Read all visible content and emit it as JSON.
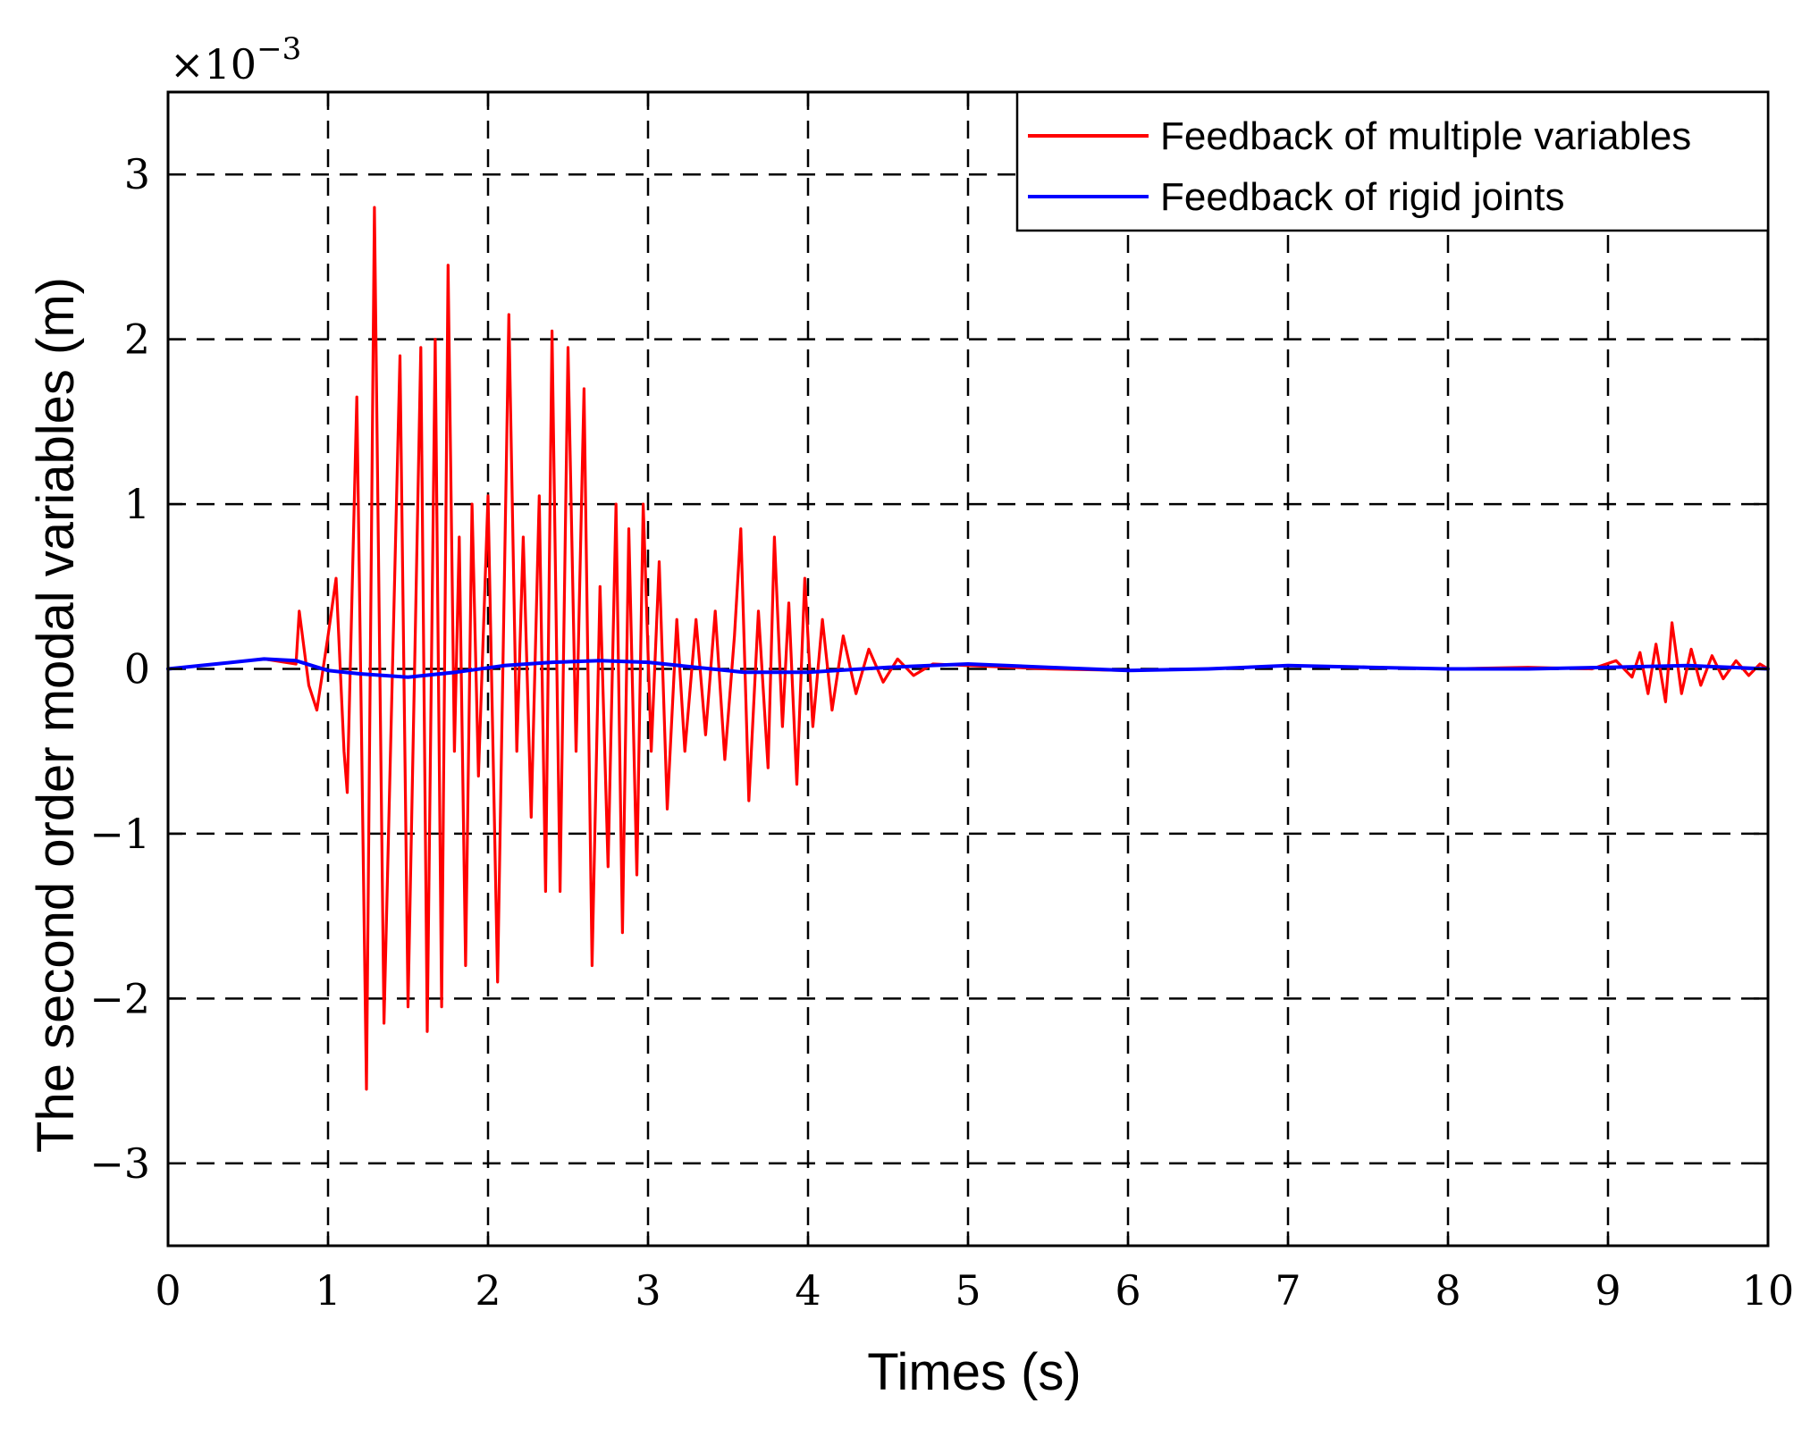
{
  "chart_data": {
    "type": "line",
    "title": "",
    "xlabel": "Times (s)",
    "ylabel": "The second order modal variables (m)",
    "y_multiplier": "×10",
    "y_multiplier_exp": "−3",
    "xlim": [
      0,
      10
    ],
    "ylim": [
      -3.5,
      3.5
    ],
    "grid": true,
    "legend_position": "top-right",
    "xticks": [
      0,
      1,
      2,
      3,
      4,
      5,
      6,
      7,
      8,
      9,
      10
    ],
    "xtick_labels": [
      "0",
      "1",
      "2",
      "3",
      "4",
      "5",
      "6",
      "7",
      "8",
      "9",
      "10"
    ],
    "yticks": [
      -3,
      -2,
      -1,
      0,
      1,
      2,
      3
    ],
    "ytick_labels": [
      "−3",
      "−2",
      "−1",
      "0",
      "1",
      "2",
      "3"
    ],
    "series": [
      {
        "name": "Feedback of multiple variables",
        "color": "#ff0000",
        "points": [
          [
            0,
            0
          ],
          [
            0.3,
            0.03
          ],
          [
            0.6,
            0.06
          ],
          [
            0.8,
            0.03
          ],
          [
            0.82,
            0.35
          ],
          [
            0.88,
            -0.1
          ],
          [
            0.93,
            -0.25
          ],
          [
            1.0,
            0.2
          ],
          [
            1.05,
            0.55
          ],
          [
            1.1,
            -0.5
          ],
          [
            1.12,
            -0.75
          ],
          [
            1.18,
            1.65
          ],
          [
            1.24,
            -2.55
          ],
          [
            1.29,
            2.8
          ],
          [
            1.35,
            -2.15
          ],
          [
            1.45,
            1.9
          ],
          [
            1.5,
            -2.05
          ],
          [
            1.58,
            1.95
          ],
          [
            1.62,
            -2.2
          ],
          [
            1.67,
            2.0
          ],
          [
            1.71,
            -2.05
          ],
          [
            1.75,
            2.45
          ],
          [
            1.79,
            -0.5
          ],
          [
            1.82,
            0.8
          ],
          [
            1.86,
            -1.8
          ],
          [
            1.9,
            1.0
          ],
          [
            1.94,
            -0.65
          ],
          [
            2.0,
            1.05
          ],
          [
            2.06,
            -1.9
          ],
          [
            2.13,
            2.15
          ],
          [
            2.18,
            -0.5
          ],
          [
            2.22,
            0.8
          ],
          [
            2.27,
            -0.9
          ],
          [
            2.32,
            1.05
          ],
          [
            2.36,
            -1.35
          ],
          [
            2.4,
            2.05
          ],
          [
            2.45,
            -1.35
          ],
          [
            2.5,
            1.95
          ],
          [
            2.55,
            -0.5
          ],
          [
            2.6,
            1.7
          ],
          [
            2.65,
            -1.8
          ],
          [
            2.7,
            0.5
          ],
          [
            2.75,
            -1.2
          ],
          [
            2.8,
            1.0
          ],
          [
            2.84,
            -1.6
          ],
          [
            2.88,
            0.85
          ],
          [
            2.93,
            -1.25
          ],
          [
            2.97,
            1.0
          ],
          [
            3.02,
            -0.5
          ],
          [
            3.07,
            0.65
          ],
          [
            3.12,
            -0.85
          ],
          [
            3.18,
            0.3
          ],
          [
            3.23,
            -0.5
          ],
          [
            3.3,
            0.3
          ],
          [
            3.36,
            -0.4
          ],
          [
            3.42,
            0.35
          ],
          [
            3.48,
            -0.55
          ],
          [
            3.54,
            0.2
          ],
          [
            3.58,
            0.85
          ],
          [
            3.63,
            -0.8
          ],
          [
            3.69,
            0.35
          ],
          [
            3.75,
            -0.6
          ],
          [
            3.79,
            0.8
          ],
          [
            3.84,
            -0.35
          ],
          [
            3.88,
            0.4
          ],
          [
            3.93,
            -0.7
          ],
          [
            3.98,
            0.55
          ],
          [
            4.03,
            -0.35
          ],
          [
            4.09,
            0.3
          ],
          [
            4.15,
            -0.25
          ],
          [
            4.22,
            0.2
          ],
          [
            4.3,
            -0.15
          ],
          [
            4.38,
            0.12
          ],
          [
            4.47,
            -0.08
          ],
          [
            4.56,
            0.06
          ],
          [
            4.66,
            -0.04
          ],
          [
            4.78,
            0.03
          ],
          [
            5.0,
            0.02
          ],
          [
            5.5,
            0.0
          ],
          [
            6.0,
            -0.01
          ],
          [
            6.5,
            0.0
          ],
          [
            7.0,
            0.02
          ],
          [
            7.5,
            0.01
          ],
          [
            8.0,
            0.0
          ],
          [
            8.5,
            0.01
          ],
          [
            8.9,
            0.0
          ],
          [
            9.05,
            0.05
          ],
          [
            9.15,
            -0.05
          ],
          [
            9.2,
            0.1
          ],
          [
            9.25,
            -0.15
          ],
          [
            9.3,
            0.15
          ],
          [
            9.36,
            -0.2
          ],
          [
            9.4,
            0.28
          ],
          [
            9.46,
            -0.15
          ],
          [
            9.52,
            0.12
          ],
          [
            9.58,
            -0.1
          ],
          [
            9.65,
            0.08
          ],
          [
            9.72,
            -0.06
          ],
          [
            9.8,
            0.05
          ],
          [
            9.88,
            -0.04
          ],
          [
            9.95,
            0.03
          ],
          [
            10.0,
            0.0
          ]
        ]
      },
      {
        "name": "Feedback of rigid joints",
        "color": "#0000ff",
        "points": [
          [
            0,
            0
          ],
          [
            0.3,
            0.03
          ],
          [
            0.6,
            0.06
          ],
          [
            0.8,
            0.05
          ],
          [
            1.0,
            -0.01
          ],
          [
            1.2,
            -0.03
          ],
          [
            1.5,
            -0.05
          ],
          [
            1.8,
            -0.02
          ],
          [
            2.1,
            0.02
          ],
          [
            2.4,
            0.04
          ],
          [
            2.7,
            0.05
          ],
          [
            3.0,
            0.04
          ],
          [
            3.3,
            0.01
          ],
          [
            3.6,
            -0.02
          ],
          [
            4.0,
            -0.02
          ],
          [
            4.5,
            0.01
          ],
          [
            5.0,
            0.03
          ],
          [
            5.5,
            0.01
          ],
          [
            6.0,
            -0.01
          ],
          [
            6.5,
            0.0
          ],
          [
            7.0,
            0.02
          ],
          [
            7.5,
            0.01
          ],
          [
            8.0,
            0.0
          ],
          [
            8.5,
            0.0
          ],
          [
            9.0,
            0.01
          ],
          [
            9.5,
            0.02
          ],
          [
            10.0,
            0.0
          ]
        ]
      }
    ]
  }
}
